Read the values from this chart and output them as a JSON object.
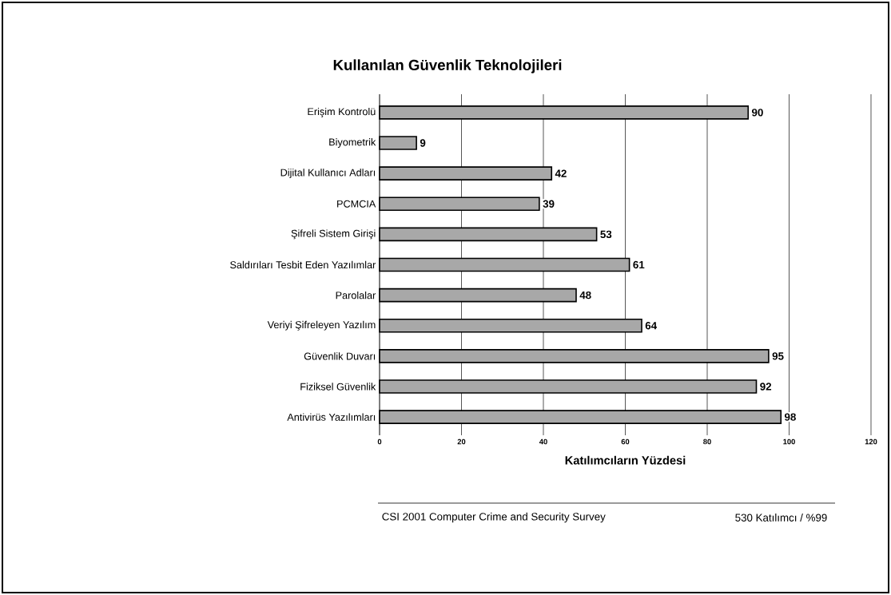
{
  "chart_data": {
    "type": "bar",
    "orientation": "horizontal",
    "title": "Kullanılan Güvenlik Teknolojileri",
    "xlabel": "Katılımcıların Yüzdesi",
    "categories": [
      "Erişim Kontrolü",
      "Biyometrik",
      "Dijital Kullanıcı Adları",
      "PCMCIA",
      "Şifreli Sistem Girişi",
      "Saldırıları Tesbit Eden Yazılımlar",
      "Parolalar",
      "Veriyi Şifreleyen Yazılım",
      "Güvenlik Duvarı",
      "Fiziksel Güvenlik",
      "Antivirüs Yazılımları"
    ],
    "values": [
      90,
      9,
      42,
      39,
      53,
      61,
      48,
      64,
      95,
      92,
      98
    ],
    "color": "#a8a8a8",
    "data_labels": true,
    "xlim": [
      0,
      120
    ],
    "xticks": [
      0,
      20,
      40,
      60,
      80,
      100,
      120
    ],
    "grid": "x",
    "annotations": [
      "CSI 2001 Computer Crime and Security Survey",
      "530 Katılımcı / %99"
    ]
  }
}
